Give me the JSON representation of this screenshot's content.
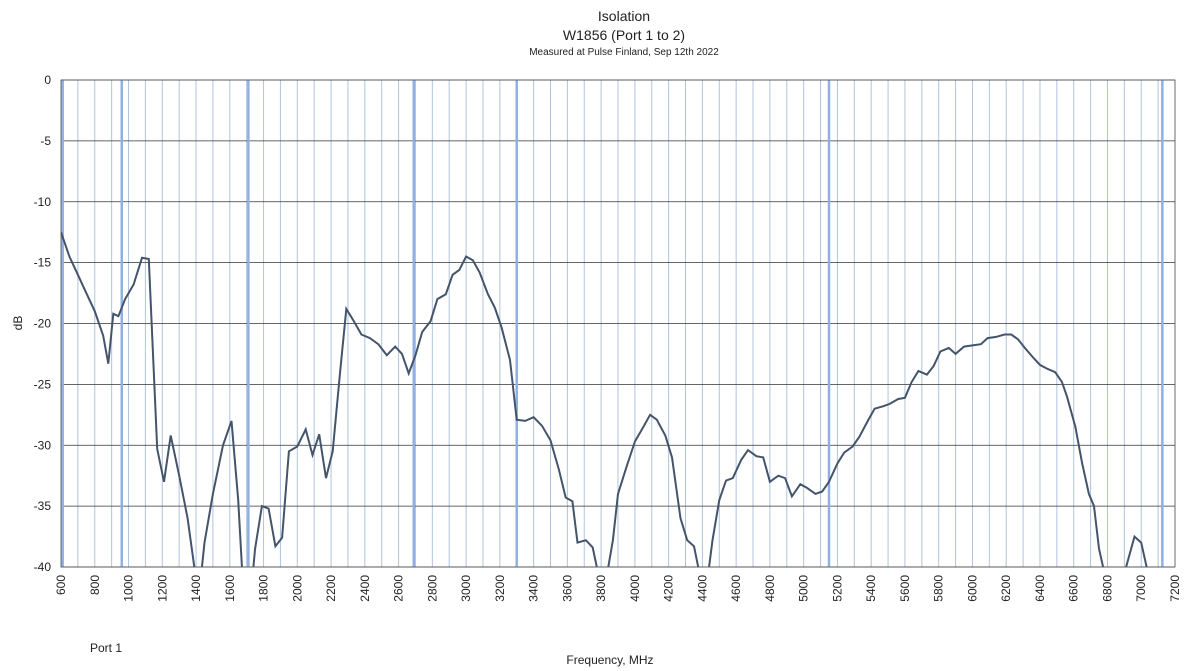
{
  "chart_data": {
    "type": "line",
    "title": "Isolation",
    "subtitle": "W1856 (Port 1 to 2)",
    "note": "Measured at Pulse Finland, Sep 12th 2022",
    "xlabel": "Frequency, MHz",
    "ylabel": "dB",
    "xlim": [
      600,
      7200
    ],
    "ylim": [
      -40,
      0
    ],
    "xticks": [
      600,
      800,
      1000,
      1200,
      1400,
      1600,
      1800,
      2000,
      2200,
      2400,
      2600,
      2800,
      3000,
      3200,
      3400,
      3600,
      3800,
      4000,
      4200,
      4400,
      4600,
      4800,
      5000,
      5200,
      5400,
      5600,
      5800,
      6000,
      6200,
      6400,
      6600,
      6800,
      7000,
      7200
    ],
    "xminor": [
      700,
      900,
      1100,
      1300,
      1500,
      1700,
      1900,
      2100,
      2300,
      2500,
      2700,
      2900,
      3100,
      3300,
      3500,
      3700,
      3900,
      4100,
      4300,
      4500,
      4700,
      4900,
      5100,
      5300,
      5500,
      5700,
      5900,
      6100,
      6300,
      6500,
      6700,
      6900,
      7100
    ],
    "yticks": [
      0,
      -5,
      -10,
      -15,
      -20,
      -25,
      -30,
      -35,
      -40
    ],
    "band_lines": [
      610,
      960,
      1710,
      2690,
      3300,
      5150,
      7125
    ],
    "band_color": "#8fb0e0",
    "grid": true,
    "x": [
      600,
      650,
      700,
      750,
      800,
      850,
      880,
      910,
      940,
      980,
      1030,
      1080,
      1120,
      1170,
      1210,
      1250,
      1300,
      1350,
      1390,
      1420,
      1450,
      1500,
      1560,
      1610,
      1650,
      1680,
      1720,
      1750,
      1790,
      1830,
      1870,
      1910,
      1950,
      2000,
      2050,
      2090,
      2130,
      2170,
      2210,
      2250,
      2290,
      2330,
      2380,
      2430,
      2480,
      2530,
      2580,
      2620,
      2660,
      2700,
      2740,
      2790,
      2830,
      2880,
      2920,
      2960,
      3000,
      3040,
      3080,
      3130,
      3170,
      3210,
      3260,
      3300,
      3350,
      3400,
      3450,
      3500,
      3550,
      3590,
      3630,
      3660,
      3710,
      3750,
      3790,
      3830,
      3870,
      3900,
      3950,
      4000,
      4050,
      4090,
      4130,
      4180,
      4220,
      4270,
      4310,
      4350,
      4390,
      4430,
      4460,
      4500,
      4540,
      4580,
      4630,
      4670,
      4720,
      4760,
      4800,
      4850,
      4890,
      4930,
      4980,
      5020,
      5070,
      5110,
      5150,
      5200,
      5240,
      5290,
      5330,
      5380,
      5420,
      5470,
      5510,
      5560,
      5600,
      5640,
      5680,
      5730,
      5770,
      5810,
      5860,
      5900,
      5950,
      6000,
      6050,
      6090,
      6140,
      6190,
      6230,
      6270,
      6310,
      6360,
      6400,
      6440,
      6490,
      6530,
      6560,
      6610,
      6650,
      6690,
      6720,
      6750,
      6790,
      6830,
      6870,
      6910,
      6960,
      7000,
      7040
    ],
    "series": [
      {
        "name": "Port 1",
        "color": "#44546a",
        "values": [
          -12.5,
          -14.5,
          -16,
          -17.5,
          -19,
          -21,
          -23.3,
          -19.2,
          -19.4,
          -18,
          -16.8,
          -14.6,
          -14.7,
          -30.3,
          -33,
          -29.2,
          -32.5,
          -36,
          -40,
          -42,
          -38,
          -34,
          -30,
          -28,
          -34.5,
          -42,
          -43,
          -38.5,
          -35,
          -35.2,
          -38.3,
          -37.6,
          -30.5,
          -30.1,
          -28.7,
          -30.8,
          -29.1,
          -32.7,
          -30.5,
          -24.5,
          -18.8,
          -19.7,
          -20.9,
          -21.2,
          -21.7,
          -22.6,
          -21.9,
          -22.5,
          -24.1,
          -22.6,
          -20.7,
          -19.8,
          -18,
          -17.6,
          -16,
          -15.6,
          -14.5,
          -14.8,
          -15.8,
          -17.6,
          -18.7,
          -20.3,
          -23,
          -27.9,
          -28,
          -27.7,
          -28.4,
          -29.6,
          -32,
          -34.3,
          -34.6,
          -38,
          -37.8,
          -38.4,
          -41,
          -41,
          -37.8,
          -34,
          -31.8,
          -29.7,
          -28.5,
          -27.5,
          -27.9,
          -29.2,
          -31,
          -36,
          -37.8,
          -38.3,
          -41,
          -41,
          -37.8,
          -34.5,
          -32.9,
          -32.7,
          -31.2,
          -30.4,
          -30.9,
          -31,
          -33,
          -32.5,
          -32.7,
          -34.2,
          -33.2,
          -33.5,
          -34,
          -33.8,
          -33,
          -31.5,
          -30.6,
          -30.1,
          -29.3,
          -28,
          -27,
          -26.8,
          -26.6,
          -26.2,
          -26.1,
          -24.8,
          -23.9,
          -24.2,
          -23.5,
          -22.3,
          -22,
          -22.5,
          -21.9,
          -21.8,
          -21.7,
          -21.2,
          -21.1,
          -20.9,
          -20.9,
          -21.3,
          -22,
          -22.8,
          -23.4,
          -23.7,
          -24,
          -24.8,
          -26,
          -28.5,
          -31.5,
          -34,
          -35,
          -38.5,
          -41,
          -42,
          -41,
          -40,
          -37.5,
          -38,
          -40.5
        ]
      }
    ]
  }
}
